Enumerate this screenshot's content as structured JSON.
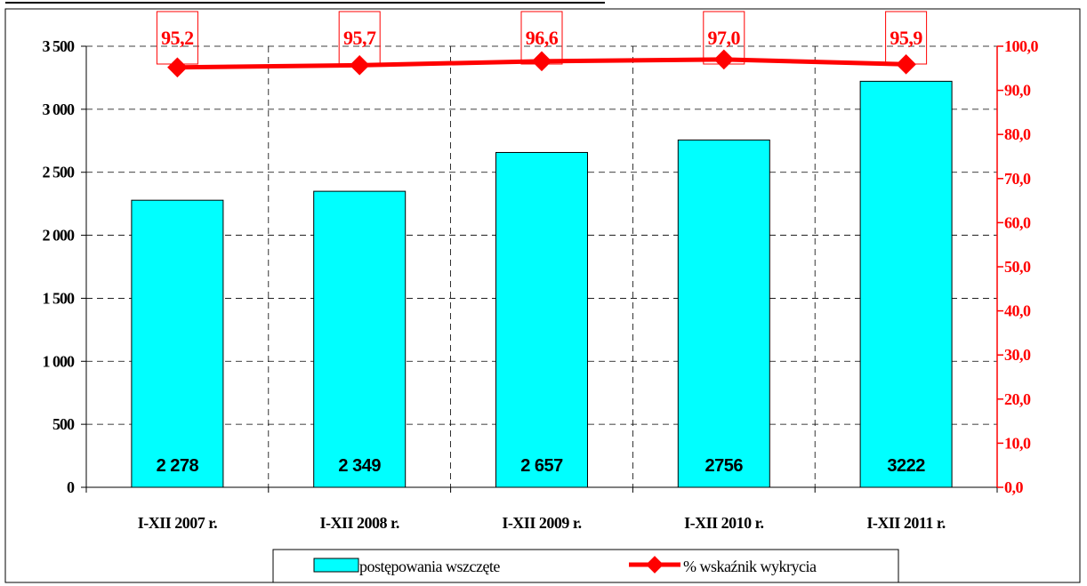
{
  "chart_data": {
    "type": "bar",
    "categories": [
      "I-XII 2007 r.",
      "I-XII 2008 r.",
      "I-XII 2009 r.",
      "I-XII 2010 r.",
      "I-XII 2011 r."
    ],
    "series": [
      {
        "name": "postępowania wszczęte",
        "type": "bar",
        "axis": "left",
        "values": [
          2278,
          2349,
          2657,
          2756,
          3222
        ],
        "data_labels": [
          "2 278",
          "2 349",
          "2 657",
          "2756",
          "3222"
        ],
        "color": "#00ffff"
      },
      {
        "name": "% wskaźnik wykrycia",
        "type": "line",
        "axis": "right",
        "values": [
          95.2,
          95.7,
          96.6,
          97.0,
          95.9
        ],
        "data_labels": [
          "95,2",
          "95,7",
          "96,6",
          "97,0",
          "95,9"
        ],
        "color": "#ff0000"
      }
    ],
    "y_left": {
      "range": [
        0,
        3500
      ],
      "ticks": [
        0,
        500,
        1000,
        1500,
        2000,
        2500,
        3000,
        3500
      ],
      "tick_labels": [
        "0",
        "500",
        "1 000",
        "1 500",
        "2 000",
        "2 500",
        "3 000",
        "3 500"
      ]
    },
    "y_right": {
      "range": [
        0,
        100
      ],
      "ticks": [
        0,
        10,
        20,
        30,
        40,
        50,
        60,
        70,
        80,
        90,
        100
      ],
      "tick_labels": [
        "0,0",
        "10,0",
        "20,0",
        "30,0",
        "40,0",
        "50,0",
        "60,0",
        "70,0",
        "80,0",
        "90,0",
        "100,0"
      ],
      "color": "#ff0000"
    },
    "grid": true,
    "legend_position": "bottom"
  }
}
